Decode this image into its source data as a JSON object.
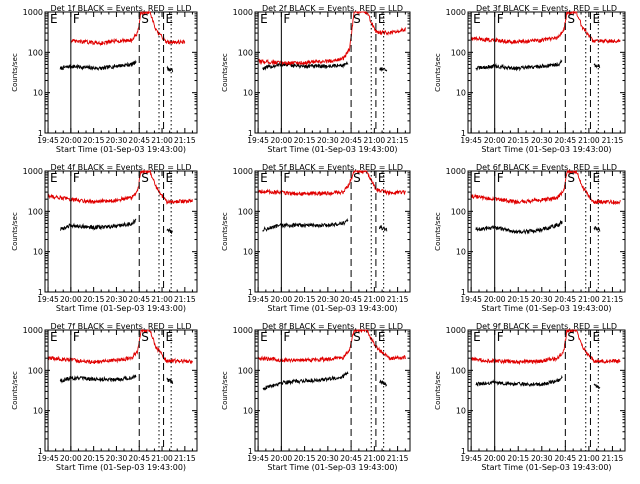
{
  "colors": {
    "events": "#000000",
    "lld": "#e00000",
    "axis": "#000000",
    "background": "#ffffff"
  },
  "shared": {
    "xlabel": "Start Time (01-Sep-03 19:43:00)",
    "ylabel": "Counts/sec",
    "xticks": [
      "19:45",
      "20:00",
      "20:15",
      "20:30",
      "20:45",
      "21:00",
      "21:15"
    ],
    "yticks": [
      "1",
      "10",
      "100",
      "1000"
    ],
    "ylim": [
      1,
      1000
    ],
    "yscale": "log",
    "marker_labels": [
      "E",
      "F",
      "S",
      "E"
    ],
    "marker_times": [
      "19:45",
      "20:00",
      "20:45",
      "21:01"
    ]
  },
  "chart_data": [
    {
      "type": "line",
      "title": "Det 1f BLACK = Events, RED = LLD",
      "series": [
        {
          "name": "Events",
          "x": [
            "19:53",
            "20:00",
            "20:10",
            "20:20",
            "20:30",
            "20:40",
            "20:43",
            "20:55",
            "21:03",
            "21:07"
          ],
          "values": [
            40,
            45,
            42,
            40,
            46,
            50,
            60,
            null,
            40,
            35
          ]
        },
        {
          "name": "LLD",
          "x": [
            "20:00",
            "20:10",
            "20:20",
            "20:30",
            "20:40",
            "20:44",
            "20:46",
            "20:52",
            "20:56",
            "21:03",
            "21:15"
          ],
          "values": [
            190,
            180,
            170,
            190,
            200,
            300,
            950,
            1000,
            350,
            180,
            180
          ]
        }
      ]
    },
    {
      "type": "line",
      "title": "Det 2f BLACK = Events, RED = LLD",
      "series": [
        {
          "name": "Events",
          "x": [
            "19:48",
            "20:00",
            "20:15",
            "20:30",
            "20:40",
            "20:43",
            "20:56",
            "21:03",
            "21:08"
          ],
          "values": [
            40,
            50,
            45,
            45,
            48,
            55,
            null,
            40,
            35
          ]
        },
        {
          "name": "LLD",
          "x": [
            "19:45",
            "20:00",
            "20:15",
            "20:30",
            "20:40",
            "20:44",
            "20:47",
            "20:55",
            "21:01",
            "21:10",
            "21:20"
          ],
          "values": [
            60,
            55,
            55,
            60,
            70,
            120,
            1000,
            1000,
            320,
            300,
            380
          ]
        }
      ]
    },
    {
      "type": "line",
      "title": "Det 3f BLACK = Events, RED = LLD",
      "series": [
        {
          "name": "Events",
          "x": [
            "19:48",
            "20:00",
            "20:15",
            "20:30",
            "20:40",
            "20:43",
            "20:55",
            "21:03",
            "21:07"
          ],
          "values": [
            40,
            45,
            40,
            45,
            50,
            60,
            null,
            50,
            45
          ]
        },
        {
          "name": "LLD",
          "x": [
            "19:45",
            "20:00",
            "20:15",
            "20:30",
            "20:40",
            "20:44",
            "20:46",
            "20:52",
            "20:56",
            "21:03",
            "21:20"
          ],
          "values": [
            220,
            200,
            180,
            200,
            230,
            350,
            950,
            1000,
            400,
            190,
            190
          ]
        }
      ]
    },
    {
      "type": "line",
      "title": "Det 4f BLACK = Events, RED = LLD",
      "series": [
        {
          "name": "Events",
          "x": [
            "19:53",
            "20:00",
            "20:15",
            "20:30",
            "20:40",
            "20:43",
            "20:55",
            "21:03",
            "21:07"
          ],
          "values": [
            35,
            45,
            40,
            42,
            50,
            60,
            null,
            35,
            30
          ]
        },
        {
          "name": "LLD",
          "x": [
            "19:45",
            "20:00",
            "20:15",
            "20:30",
            "20:40",
            "20:44",
            "20:46",
            "20:52",
            "20:56",
            "21:03",
            "21:20"
          ],
          "values": [
            240,
            200,
            170,
            190,
            220,
            320,
            950,
            1000,
            400,
            170,
            180
          ]
        }
      ]
    },
    {
      "type": "line",
      "title": "Det 5f BLACK = Events, RED = LLD",
      "series": [
        {
          "name": "Events",
          "x": [
            "19:48",
            "20:00",
            "20:15",
            "20:30",
            "20:40",
            "20:43",
            "20:56",
            "21:03",
            "21:08"
          ],
          "values": [
            35,
            45,
            45,
            45,
            50,
            60,
            null,
            40,
            35
          ]
        },
        {
          "name": "LLD",
          "x": [
            "19:45",
            "20:00",
            "20:15",
            "20:30",
            "20:40",
            "20:44",
            "20:47",
            "20:55",
            "21:01",
            "21:10",
            "21:20"
          ],
          "values": [
            320,
            290,
            270,
            280,
            300,
            500,
            1000,
            1000,
            350,
            280,
            300
          ]
        }
      ]
    },
    {
      "type": "line",
      "title": "Det 6f BLACK = Events, RED = LLD",
      "series": [
        {
          "name": "Events",
          "x": [
            "19:48",
            "20:00",
            "20:15",
            "20:30",
            "20:40",
            "20:43",
            "20:55",
            "21:03",
            "21:07"
          ],
          "values": [
            35,
            40,
            30,
            35,
            45,
            55,
            null,
            40,
            35
          ]
        },
        {
          "name": "LLD",
          "x": [
            "19:45",
            "20:00",
            "20:15",
            "20:30",
            "20:40",
            "20:44",
            "20:46",
            "20:52",
            "20:56",
            "21:03",
            "21:20"
          ],
          "values": [
            240,
            200,
            170,
            190,
            220,
            320,
            950,
            1000,
            400,
            170,
            170
          ]
        }
      ]
    },
    {
      "type": "line",
      "title": "Det 7f BLACK = Events, RED = LLD",
      "series": [
        {
          "name": "Events",
          "x": [
            "19:53",
            "20:00",
            "20:15",
            "20:30",
            "20:40",
            "20:43",
            "20:55",
            "21:03",
            "21:07"
          ],
          "values": [
            55,
            65,
            60,
            60,
            65,
            75,
            null,
            60,
            50
          ]
        },
        {
          "name": "LLD",
          "x": [
            "19:45",
            "20:00",
            "20:15",
            "20:30",
            "20:40",
            "20:44",
            "20:46",
            "20:52",
            "20:56",
            "21:03",
            "21:20"
          ],
          "values": [
            200,
            180,
            160,
            180,
            200,
            300,
            950,
            1000,
            380,
            170,
            170
          ]
        }
      ]
    },
    {
      "type": "line",
      "title": "Det 8f BLACK = Events, RED = LLD",
      "series": [
        {
          "name": "Events",
          "x": [
            "19:48",
            "20:00",
            "20:15",
            "20:30",
            "20:40",
            "20:43",
            "20:56",
            "21:03",
            "21:08"
          ],
          "values": [
            35,
            50,
            55,
            60,
            70,
            90,
            null,
            55,
            45
          ]
        },
        {
          "name": "LLD",
          "x": [
            "19:45",
            "20:00",
            "20:15",
            "20:30",
            "20:40",
            "20:44",
            "20:47",
            "20:55",
            "21:01",
            "21:10",
            "21:20"
          ],
          "values": [
            200,
            180,
            180,
            190,
            210,
            330,
            1000,
            1000,
            380,
            190,
            210
          ]
        }
      ]
    },
    {
      "type": "line",
      "title": "Det 9f BLACK = Events, RED = LLD",
      "series": [
        {
          "name": "Events",
          "x": [
            "19:48",
            "20:00",
            "20:15",
            "20:30",
            "20:40",
            "20:43",
            "20:55",
            "21:03",
            "21:07"
          ],
          "values": [
            45,
            50,
            45,
            45,
            55,
            65,
            null,
            45,
            35
          ]
        },
        {
          "name": "LLD",
          "x": [
            "19:45",
            "20:00",
            "20:15",
            "20:30",
            "20:40",
            "20:44",
            "20:46",
            "20:52",
            "20:56",
            "21:03",
            "21:20"
          ],
          "values": [
            190,
            170,
            160,
            170,
            200,
            300,
            950,
            1000,
            380,
            170,
            170
          ]
        }
      ]
    }
  ]
}
